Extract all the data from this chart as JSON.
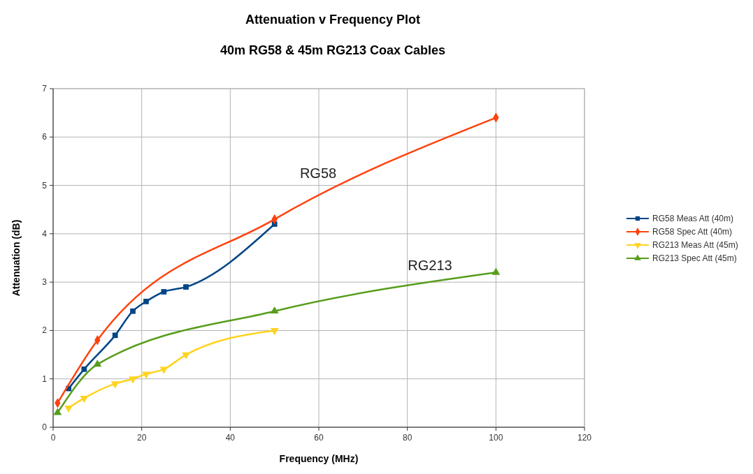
{
  "chart_data": {
    "type": "line",
    "title": "Attenuation v Frequency Plot",
    "subtitle": "40m RG58 & 45m RG213 Coax Cables",
    "xlabel": "Frequency (MHz)",
    "ylabel": "Attenuation (dB)",
    "xlim": [
      0,
      120
    ],
    "xticks": [
      0,
      20,
      40,
      60,
      80,
      100,
      120
    ],
    "ylim": [
      0,
      7
    ],
    "yticks": [
      0,
      1,
      2,
      3,
      4,
      5,
      6,
      7
    ],
    "grid": true,
    "legend": "right",
    "annotations": [
      "RG58",
      "RG213"
    ],
    "series": [
      {
        "name": "RG58 Meas Att (40m)",
        "color": "#004586",
        "marker": "square",
        "x": [
          3.5,
          7,
          14,
          18,
          21,
          25,
          30,
          50
        ],
        "values": [
          0.8,
          1.2,
          1.9,
          2.4,
          2.6,
          2.8,
          2.9,
          4.2
        ]
      },
      {
        "name": "RG58 Spec Att (40m)",
        "color": "#ff420e",
        "marker": "diamond",
        "x": [
          1,
          10,
          50,
          100
        ],
        "values": [
          0.5,
          1.8,
          4.3,
          6.4
        ]
      },
      {
        "name": "RG213 Meas Att (45m)",
        "color": "#ffd320",
        "marker": "triangle-down",
        "x": [
          3.5,
          7,
          14,
          18,
          21,
          25,
          30,
          50
        ],
        "values": [
          0.4,
          0.6,
          0.9,
          1.0,
          1.1,
          1.2,
          1.5,
          2.0
        ]
      },
      {
        "name": "RG213 Spec Att (45m)",
        "color": "#579d1c",
        "marker": "triangle",
        "x": [
          1,
          10,
          50,
          100
        ],
        "values": [
          0.3,
          1.3,
          2.4,
          3.2
        ]
      }
    ]
  }
}
